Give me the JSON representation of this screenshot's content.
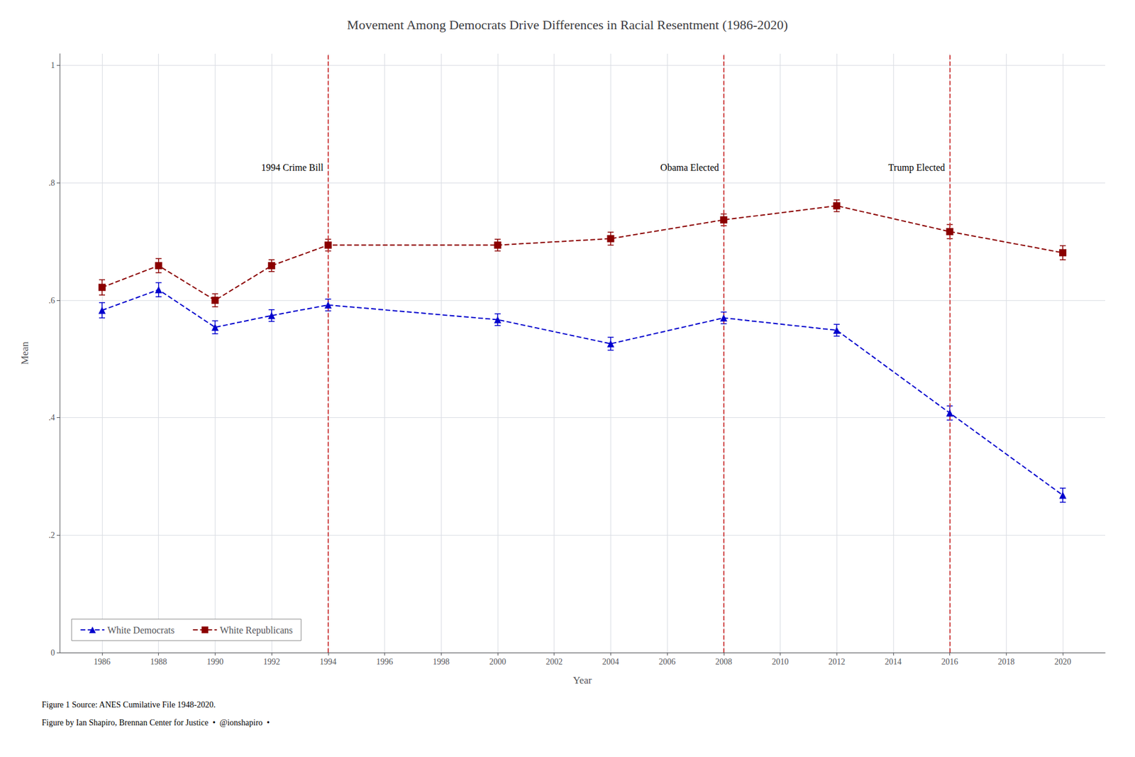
{
  "chart_data": {
    "type": "line",
    "title": "Movement Among Democrats Drive Differences in Racial Resentment (1986-2020)",
    "xlabel": "Year",
    "ylabel": "Mean",
    "x": [
      1986,
      1988,
      1990,
      1992,
      1994,
      2000,
      2004,
      2008,
      2012,
      2016,
      2020
    ],
    "series": [
      {
        "name": "White Democrats",
        "color": "#0000cd",
        "marker": "triangle",
        "line_style": "dashed",
        "values": [
          0.583,
          0.618,
          0.554,
          0.574,
          0.592,
          0.567,
          0.526,
          0.57,
          0.549,
          0.408,
          0.268
        ],
        "errors": [
          0.013,
          0.012,
          0.011,
          0.01,
          0.01,
          0.01,
          0.011,
          0.01,
          0.01,
          0.012,
          0.012
        ]
      },
      {
        "name": "White Republicans",
        "color": "#8b0000",
        "marker": "square",
        "line_style": "dashed",
        "values": [
          0.622,
          0.659,
          0.6,
          0.659,
          0.694,
          0.694,
          0.705,
          0.737,
          0.761,
          0.717,
          0.681
        ],
        "errors": [
          0.013,
          0.012,
          0.011,
          0.01,
          0.01,
          0.01,
          0.011,
          0.01,
          0.01,
          0.012,
          0.012
        ]
      }
    ],
    "vlines": [
      {
        "x": 1994,
        "label": "1994 Crime Bill",
        "color": "#cc3333"
      },
      {
        "x": 2008,
        "label": "Obama Elected",
        "color": "#cc3333"
      },
      {
        "x": 2016,
        "label": "Trump Elected",
        "color": "#cc3333"
      }
    ],
    "annotations": [
      "Figure 1 Source: ANES Cumilative File 1948-2020.",
      "Figure by Ian Shapiro, Brennan Center for Justice  •  @ionshapiro  •"
    ],
    "xlim": [
      1984.5,
      2021.5
    ],
    "xticks": [
      1986,
      1988,
      1990,
      1992,
      1994,
      1996,
      1998,
      2000,
      2002,
      2004,
      2006,
      2008,
      2010,
      2012,
      2014,
      2016,
      2018,
      2020
    ],
    "ylim": [
      0,
      1.02
    ],
    "yticks": [
      0,
      {
        "value": 0.2,
        "label": ".2"
      },
      {
        "value": 0.4,
        "label": ".4"
      },
      {
        "value": 0.6,
        "label": ".6"
      },
      {
        "value": 0.8,
        "label": ".8"
      },
      1
    ],
    "grid": true,
    "legend": "lower left"
  }
}
